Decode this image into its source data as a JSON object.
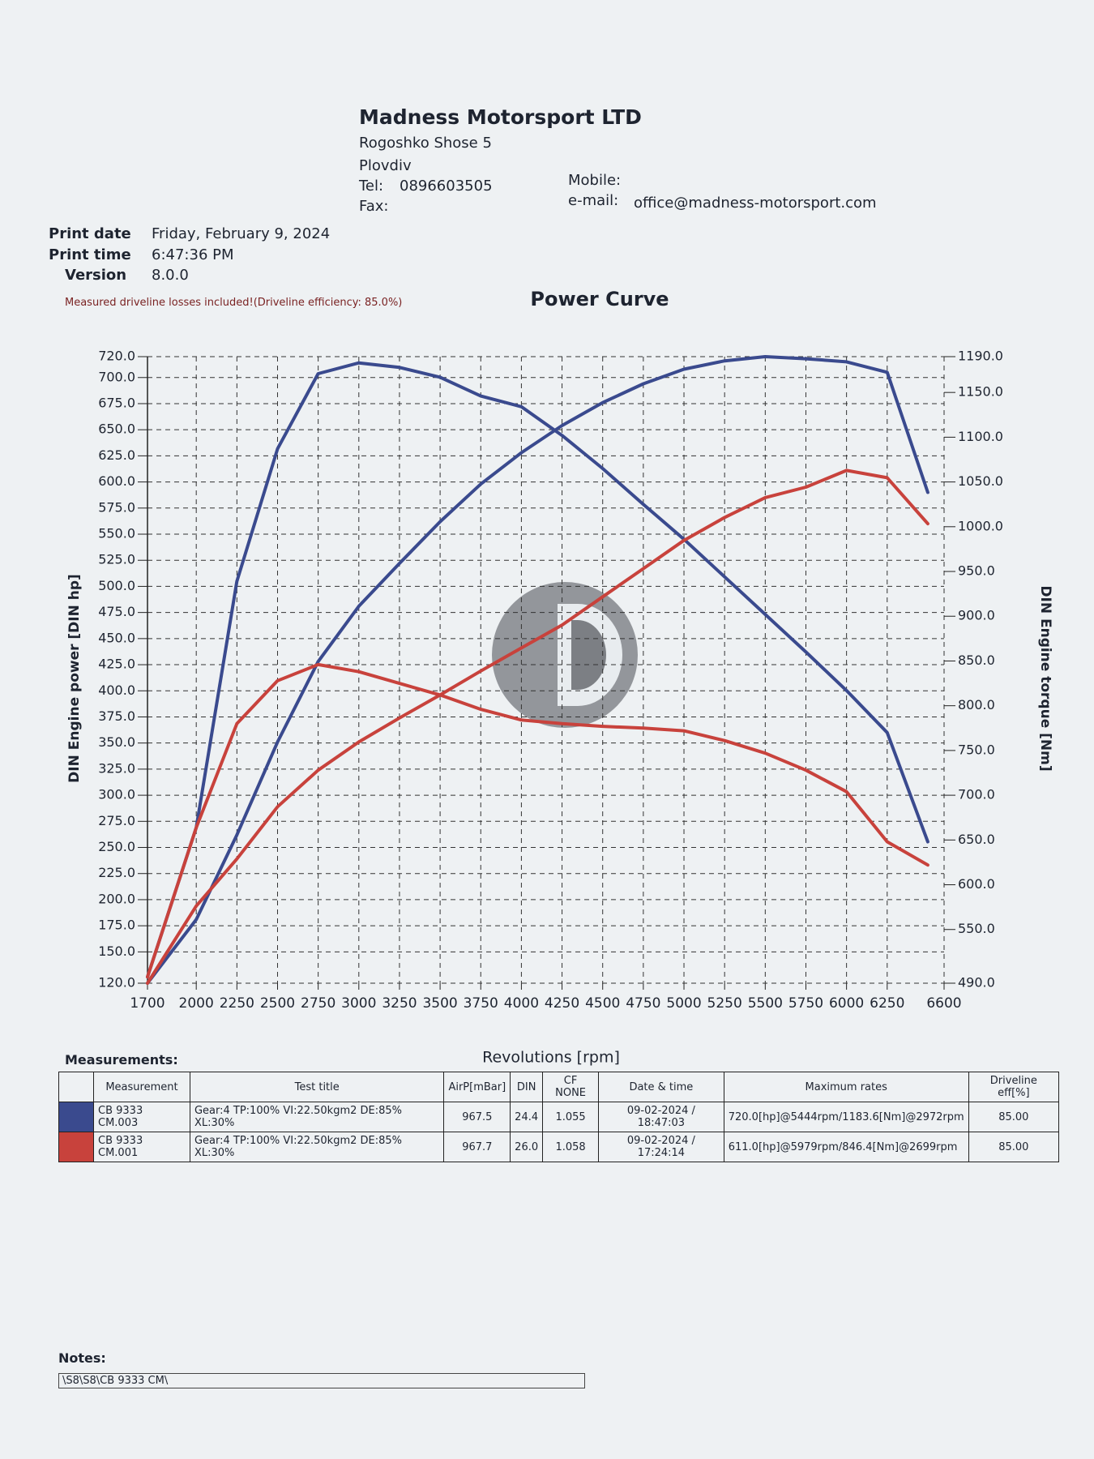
{
  "header": {
    "company": "Madness Motorsport LTD",
    "address": "Rogoshko Shose 5",
    "city": "Plovdiv",
    "tel_label": "Tel:",
    "tel": "0896603505",
    "fax_label": "Fax:",
    "mobile_label": "Mobile:",
    "email_label": "e-mail:",
    "email": "office@madness-motorsport.com"
  },
  "print_info": {
    "date_label": "Print date",
    "date": "Friday, February 9, 2024",
    "time_label": "Print time",
    "time": "6:47:36 PM",
    "version_label": "Version",
    "version": "8.0.0"
  },
  "notice": "Measured driveline losses included!(Driveline efficiency: 85.0%)",
  "chart_data": {
    "type": "line",
    "title": "Power Curve",
    "x_label": "Revolutions [rpm]",
    "y_label": "DIN Engine power [DIN hp]",
    "y2_label": "DIN Engine torque [Nm]",
    "x": [
      1700,
      2000,
      2250,
      2500,
      2750,
      3000,
      3250,
      3500,
      3750,
      4000,
      4250,
      4500,
      4750,
      5000,
      5250,
      5500,
      5750,
      6000,
      6250,
      6500
    ],
    "series": [
      {
        "color": "#3a4a8e",
        "values": [
          120,
          181,
          262,
          351,
          428,
          481,
          522,
          562,
          598,
          628,
          654,
          676,
          694,
          708,
          716,
          720,
          718,
          715,
          705,
          590
        ]
      },
      {
        "color": "#3a4a8e",
        "axis": "y2",
        "values": [
          497,
          664,
          939,
          1087,
          1171,
          1183,
          1178,
          1167,
          1146,
          1134,
          1102,
          1065,
          1025,
          986,
          944,
          902,
          860,
          817,
          770,
          648
        ]
      },
      {
        "color": "#c8423c",
        "values": [
          120,
          194,
          239,
          289,
          324,
          351,
          374,
          396,
          419,
          441,
          463,
          490,
          517,
          544,
          566,
          585,
          595,
          611,
          604,
          560
        ]
      },
      {
        "color": "#c8423c",
        "axis": "y2",
        "values": [
          497,
          664,
          780,
          828,
          846,
          838,
          825,
          812,
          796,
          784,
          780,
          777,
          775,
          772,
          761,
          747,
          728,
          704,
          648,
          622
        ]
      }
    ],
    "xlim": [
      1700,
      6600
    ],
    "xticks": [
      1700,
      2000,
      2250,
      2500,
      2750,
      3000,
      3250,
      3500,
      3750,
      4000,
      4250,
      4500,
      4750,
      5000,
      5250,
      5500,
      5750,
      6000,
      6250,
      6600
    ],
    "ylim": [
      120,
      720
    ],
    "yticks": [
      {
        "value": 120,
        "label": "120.0"
      },
      {
        "value": 150,
        "label": "150.0"
      },
      {
        "value": 175,
        "label": "175.0"
      },
      {
        "value": 200,
        "label": "200.0"
      },
      {
        "value": 225,
        "label": "225.0"
      },
      {
        "value": 250,
        "label": "250.0"
      },
      {
        "value": 275,
        "label": "275.0"
      },
      {
        "value": 300,
        "label": "300.0"
      },
      {
        "value": 325,
        "label": "325.0"
      },
      {
        "value": 350,
        "label": "350.0"
      },
      {
        "value": 375,
        "label": "375.0"
      },
      {
        "value": 400,
        "label": "400.0"
      },
      {
        "value": 425,
        "label": "425.0"
      },
      {
        "value": 450,
        "label": "450.0"
      },
      {
        "value": 475,
        "label": "475.0"
      },
      {
        "value": 500,
        "label": "500.0"
      },
      {
        "value": 525,
        "label": "525.0"
      },
      {
        "value": 550,
        "label": "550.0"
      },
      {
        "value": 575,
        "label": "575.0"
      },
      {
        "value": 600,
        "label": "600.0"
      },
      {
        "value": 625,
        "label": "625.0"
      },
      {
        "value": 650,
        "label": "650.0"
      },
      {
        "value": 675,
        "label": "675.0"
      },
      {
        "value": 700,
        "label": "700.0"
      },
      {
        "value": 720,
        "label": "720.0"
      }
    ],
    "y2lim": [
      490,
      1190
    ],
    "y2ticks": [
      {
        "value": 490,
        "label": "490.0"
      },
      {
        "value": 550,
        "label": "550.0"
      },
      {
        "value": 600,
        "label": "600.0"
      },
      {
        "value": 650,
        "label": "650.0"
      },
      {
        "value": 700,
        "label": "700.0"
      },
      {
        "value": 750,
        "label": "750.0"
      },
      {
        "value": 800,
        "label": "800.0"
      },
      {
        "value": 850,
        "label": "850.0"
      },
      {
        "value": 900,
        "label": "900.0"
      },
      {
        "value": 950,
        "label": "950.0"
      },
      {
        "value": 1000,
        "label": "1000.0"
      },
      {
        "value": 1050,
        "label": "1050.0"
      },
      {
        "value": 1100,
        "label": "1100.0"
      },
      {
        "value": 1150,
        "label": "1150.0"
      },
      {
        "value": 1190,
        "label": "1190.0"
      }
    ],
    "grid": true
  },
  "measurements": {
    "title": "Measurements:",
    "headers": [
      "Measurement",
      "Test title",
      "AirP[mBar]",
      "DIN",
      "CF NONE",
      "Date & time",
      "Maximum rates",
      "Driveline eff[%]"
    ],
    "rows": [
      [
        "CB 9333 CM.003",
        "Gear:4 TP:100% VI:22.50kgm2 DE:85% XL:30%",
        "967.5",
        "24.4",
        "1.055",
        "09-02-2024 / 18:47:03",
        "720.0[hp]@5444rpm/1183.6[Nm]@2972rpm",
        "85.00"
      ],
      [
        "CB 9333 CM.001",
        "Gear:4 TP:100% VI:22.50kgm2 DE:85% XL:30%",
        "967.7",
        "26.0",
        "1.058",
        "09-02-2024 / 17:24:14",
        "611.0[hp]@5979rpm/846.4[Nm]@2699rpm",
        "85.00"
      ]
    ]
  },
  "notes": {
    "label": "Notes:",
    "text": "\\S8\\S8\\CB 9333 CM\\"
  }
}
